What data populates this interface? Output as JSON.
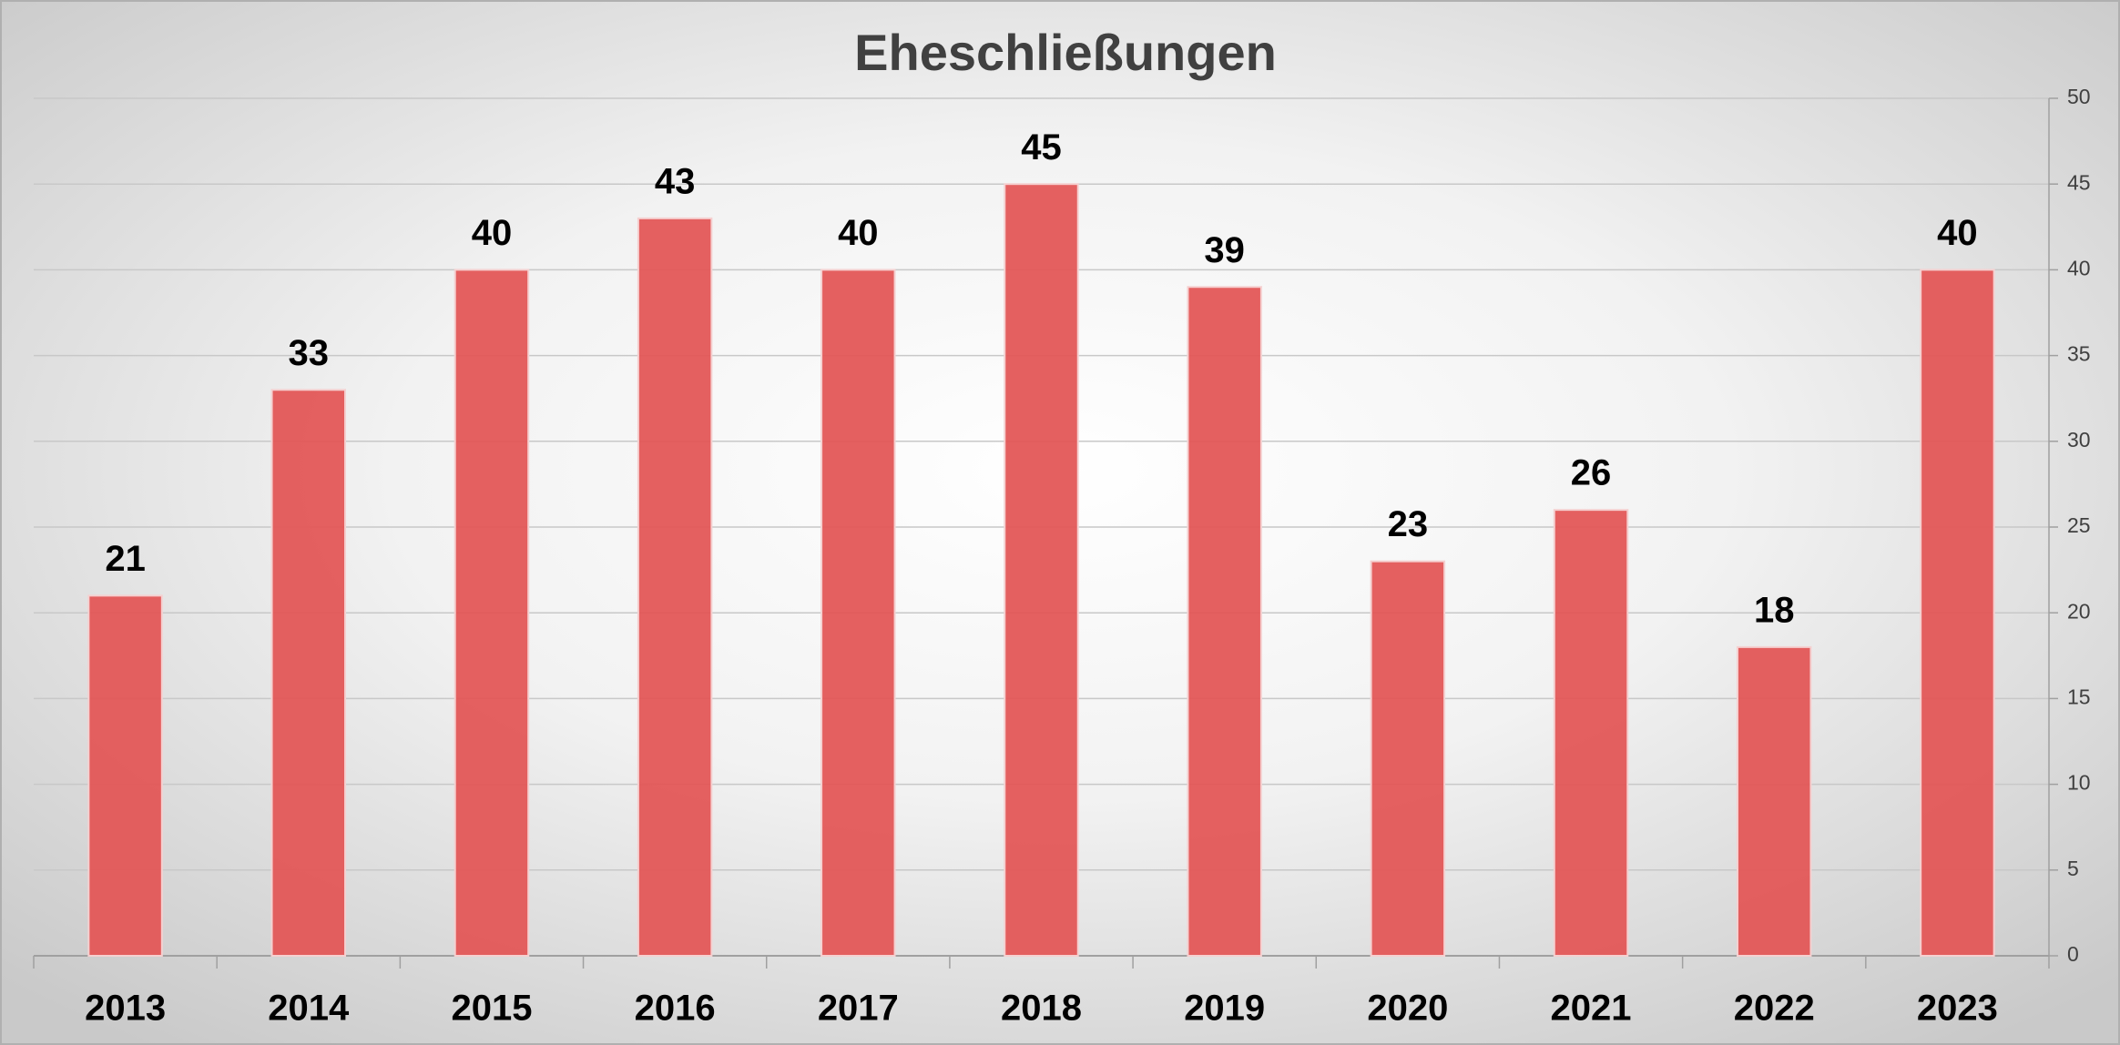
{
  "chart_data": {
    "type": "bar",
    "title": "Eheschließungen",
    "categories": [
      "2013",
      "2014",
      "2015",
      "2016",
      "2017",
      "2018",
      "2019",
      "2020",
      "2021",
      "2022",
      "2023"
    ],
    "values": [
      21,
      33,
      40,
      43,
      40,
      45,
      39,
      23,
      26,
      18,
      40
    ],
    "color": "#e35757",
    "ylim": [
      0,
      50
    ],
    "yticks": [
      0,
      5,
      10,
      15,
      20,
      25,
      30,
      35,
      40,
      45,
      50
    ],
    "grid": true
  }
}
